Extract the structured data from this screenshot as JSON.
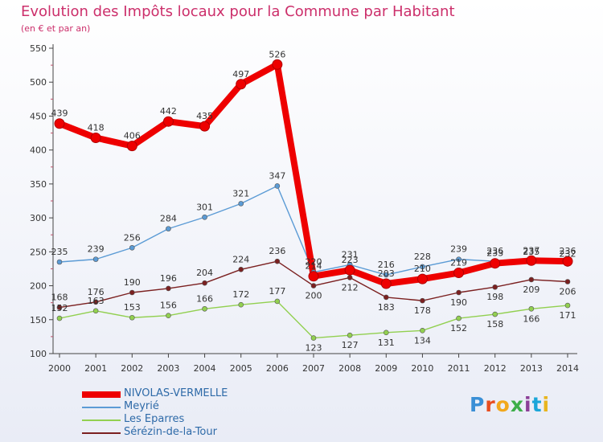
{
  "header": {
    "title": "Evolution des Impôts locaux pour la Commune par Habitant",
    "subtitle": "(en € et par an)"
  },
  "logo": {
    "text": "Proxiti",
    "letter_colors": [
      "#3a8fd6",
      "#e84d1f",
      "#f2a81c",
      "#3dae49",
      "#8c3f98",
      "#1aa6d9",
      "#e8b51e"
    ]
  },
  "chart_data": {
    "type": "line",
    "x": [
      "2000",
      "2001",
      "2002",
      "2003",
      "2004",
      "2005",
      "2006",
      "2007",
      "2008",
      "2009",
      "2010",
      "2011",
      "2012",
      "2013",
      "2014"
    ],
    "ylim": [
      100,
      550
    ],
    "yticks": [
      "100",
      "150",
      "200",
      "250",
      "300",
      "350",
      "400",
      "450",
      "500",
      "550"
    ],
    "grid": false,
    "legend": "bottom-left",
    "series": [
      {
        "name": "NIVOLAS-VERMELLE",
        "color": "#ee0000",
        "values": [
          439,
          418,
          406,
          442,
          435,
          497,
          526,
          214,
          223,
          203,
          210,
          219,
          233,
          237,
          236
        ]
      },
      {
        "name": "Meyrié",
        "color": "#5b9bd5",
        "values": [
          235,
          239,
          256,
          284,
          301,
          321,
          347,
          220,
          231,
          216,
          228,
          239,
          236,
          235,
          232
        ]
      },
      {
        "name": "Les Eparres",
        "color": "#92d050",
        "values": [
          152,
          163,
          153,
          156,
          166,
          172,
          177,
          123,
          127,
          131,
          134,
          152,
          158,
          166,
          171
        ]
      },
      {
        "name": "Sérézin-de-la-Tour",
        "color": "#7b2020",
        "values": [
          168,
          176,
          190,
          196,
          204,
          224,
          236,
          200,
          212,
          183,
          178,
          190,
          198,
          209,
          206
        ]
      }
    ]
  }
}
